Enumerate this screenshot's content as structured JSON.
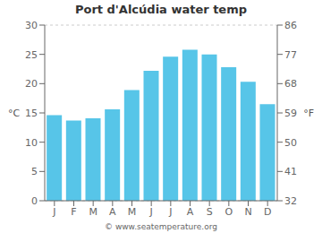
{
  "chart_data": {
    "type": "bar",
    "title": "Port d'Alcúdia water temp",
    "categories": [
      "J",
      "F",
      "M",
      "A",
      "M",
      "J",
      "J",
      "A",
      "S",
      "O",
      "N",
      "D"
    ],
    "values": [
      14.6,
      13.7,
      14.1,
      15.6,
      18.9,
      22.2,
      24.6,
      25.8,
      25.0,
      22.8,
      20.3,
      16.5
    ],
    "color": "#57c5e8",
    "ylim": [
      0,
      30
    ],
    "yticks": [
      0,
      5,
      10,
      15,
      20,
      25,
      30
    ],
    "y2lim": [
      32,
      86
    ],
    "y2ticks": [
      32,
      41,
      50,
      59,
      68,
      77,
      86
    ],
    "ylabel": "°C",
    "y2label": "°F",
    "grid": true,
    "annotations": [
      "© www.seatemperature.org"
    ]
  }
}
